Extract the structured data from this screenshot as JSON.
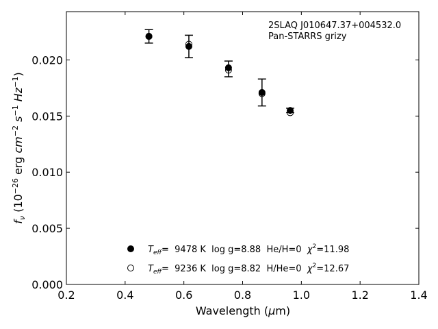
{
  "chart_data": {
    "type": "scatter",
    "annotation": [
      "2SLAQ J010647.37+004532.0",
      "Pan-STARRS grizy"
    ],
    "xlabel": "Wavelength (μm)",
    "ylabel": "f_ν (10^-26 erg cm^-2 s^-1 Hz^-1)",
    "xlim": [
      0.2,
      1.4
    ],
    "ylim": [
      0.0,
      0.0243
    ],
    "xticks": [
      "0.2",
      "0.4",
      "0.6",
      "0.8",
      "1.0",
      "1.2",
      "1.4"
    ],
    "yticks": [
      "0.000",
      "0.005",
      "0.010",
      "0.015",
      "0.020"
    ],
    "grid": false,
    "legend_position": "bottom-center",
    "observed": {
      "x": [
        0.481,
        0.617,
        0.752,
        0.866,
        0.962
      ],
      "y": [
        0.0221,
        0.0212,
        0.0192,
        0.0171,
        0.0155
      ],
      "yerr": [
        0.0006,
        0.001,
        0.0007,
        0.0012,
        0.0002
      ]
    },
    "series": [
      {
        "name": "T_eff= 9478 K log g=8.88 He/H=0 χ²=11.98",
        "marker": "filled-circle",
        "x": [
          0.481,
          0.617,
          0.752,
          0.866,
          0.962
        ],
        "y": [
          0.0221,
          0.0212,
          0.0193,
          0.0171,
          0.0155
        ]
      },
      {
        "name": "T_eff= 9236 K log g=8.82 H/He=0 χ²=12.67",
        "marker": "open-circle",
        "x": [
          0.481,
          0.617,
          0.752,
          0.866,
          0.962
        ],
        "y": [
          0.0221,
          0.0214,
          0.0191,
          0.017,
          0.0153
        ]
      }
    ],
    "legend": [
      {
        "marker": "filled-circle",
        "teff_label": "T",
        "teff_sub": "eff",
        "text": "=  9478 K  log g=8.88  He/H=0  ",
        "chi": "χ",
        "chi_sup": "2",
        "chi_value": "=11.98"
      },
      {
        "marker": "open-circle",
        "teff_label": "T",
        "teff_sub": "eff",
        "text": "=  9236 K  log g=8.82  H/He=0  ",
        "chi": "χ",
        "chi_sup": "2",
        "chi_value": "=12.67"
      }
    ]
  }
}
